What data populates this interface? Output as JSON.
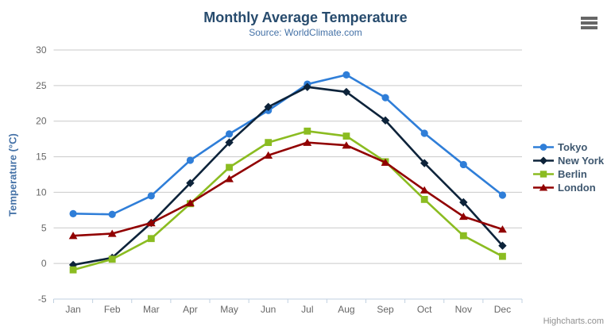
{
  "chart_data": {
    "type": "line",
    "title": "Monthly Average Temperature",
    "subtitle": "Source: WorldClimate.com",
    "xlabel": "",
    "ylabel": "Temperature (°C)",
    "categories": [
      "Jan",
      "Feb",
      "Mar",
      "Apr",
      "May",
      "Jun",
      "Jul",
      "Aug",
      "Sep",
      "Oct",
      "Nov",
      "Dec"
    ],
    "ylim": [
      -5,
      30
    ],
    "ytick_interval": 5,
    "grid": true,
    "legend_position": "right",
    "series": [
      {
        "name": "Tokyo",
        "color": "#2f7ed8",
        "marker": "circle",
        "values": [
          7.0,
          6.9,
          9.5,
          14.5,
          18.2,
          21.5,
          25.2,
          26.5,
          23.3,
          18.3,
          13.9,
          9.6
        ]
      },
      {
        "name": "New York",
        "color": "#0d233a",
        "marker": "diamond",
        "values": [
          -0.2,
          0.8,
          5.7,
          11.3,
          17.0,
          22.0,
          24.8,
          24.1,
          20.1,
          14.1,
          8.6,
          2.5
        ]
      },
      {
        "name": "Berlin",
        "color": "#8bbc21",
        "marker": "square",
        "values": [
          -0.9,
          0.6,
          3.5,
          8.4,
          13.5,
          17.0,
          18.6,
          17.9,
          14.3,
          9.0,
          3.9,
          1.0
        ]
      },
      {
        "name": "London",
        "color": "#910000",
        "marker": "triangle",
        "values": [
          3.9,
          4.2,
          5.7,
          8.5,
          11.9,
          15.2,
          17.0,
          16.6,
          14.2,
          10.3,
          6.6,
          4.8
        ]
      }
    ]
  },
  "styles": {
    "grid_color": "#c9c9c9",
    "axis_line_color": "#c0d0e0",
    "tick_label_color": "#666666",
    "title_color": "#274b6d",
    "subtitle_color": "#4572a7",
    "axis_title_color": "#4572a7",
    "legend_text_color": "#3e576f",
    "credits_color": "#909090",
    "menu_icon_color": "#666666"
  },
  "credits": {
    "label": "Highcharts.com"
  }
}
